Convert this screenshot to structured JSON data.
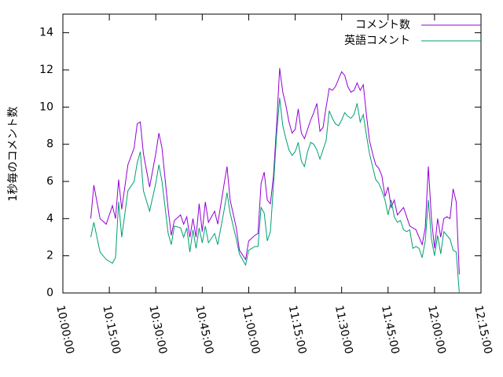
{
  "chart_data": {
    "type": "line",
    "ylabel": "1秒毎のコメント数",
    "x": [
      "10:09:00",
      "10:10:00",
      "10:12:00",
      "10:14:00",
      "10:16:00",
      "10:17:00",
      "10:18:00",
      "10:19:00",
      "10:21:00",
      "10:23:00",
      "10:24:00",
      "10:25:00",
      "10:26:00",
      "10:28:00",
      "10:30:00",
      "10:31:00",
      "10:32:00",
      "10:34:00",
      "10:35:00",
      "10:36:00",
      "10:38:00",
      "10:39:00",
      "10:40:00",
      "10:41:00",
      "10:42:00",
      "10:43:00",
      "10:44:00",
      "10:45:00",
      "10:46:00",
      "10:47:00",
      "10:49:00",
      "10:50:00",
      "10:52:00",
      "10:53:00",
      "10:54:00",
      "10:56:00",
      "10:57:00",
      "10:59:00",
      "11:00:00",
      "11:02:00",
      "11:03:00",
      "11:04:00",
      "11:05:00",
      "11:06:00",
      "11:07:00",
      "11:08:00",
      "11:09:00",
      "11:10:00",
      "11:11:00",
      "11:12:00",
      "11:13:00",
      "11:14:00",
      "11:15:00",
      "11:16:00",
      "11:17:00",
      "11:18:00",
      "11:19:00",
      "11:20:00",
      "11:21:00",
      "11:22:00",
      "11:23:00",
      "11:24:00",
      "11:25:00",
      "11:26:00",
      "11:27:00",
      "11:28:00",
      "11:29:00",
      "11:30:00",
      "11:31:00",
      "11:32:00",
      "11:33:00",
      "11:34:00",
      "11:35:00",
      "11:36:00",
      "11:37:00",
      "11:38:00",
      "11:39:00",
      "11:40:00",
      "11:41:00",
      "11:42:00",
      "11:43:00",
      "11:44:00",
      "11:45:00",
      "11:46:00",
      "11:47:00",
      "11:48:00",
      "11:49:00",
      "11:50:00",
      "11:51:00",
      "11:52:00",
      "11:53:00",
      "11:54:00",
      "11:55:00",
      "11:56:00",
      "11:57:00",
      "11:58:00",
      "11:59:00",
      "12:00:00",
      "12:01:00",
      "12:02:00",
      "12:03:00",
      "12:04:00",
      "12:05:00",
      "12:06:00",
      "12:07:00",
      "12:08:00"
    ],
    "series": [
      {
        "name": "コメント数",
        "color": "#9400d3",
        "values": [
          4.0,
          5.8,
          4.0,
          3.7,
          4.7,
          4.0,
          6.1,
          4.5,
          6.9,
          7.8,
          9.1,
          9.2,
          7.5,
          5.7,
          7.5,
          8.6,
          7.8,
          4.5,
          3.1,
          3.9,
          4.2,
          3.7,
          4.1,
          3.0,
          4.0,
          3.0,
          4.8,
          3.3,
          4.9,
          3.8,
          4.4,
          3.7,
          5.8,
          6.8,
          5.0,
          3.5,
          2.3,
          1.8,
          2.8,
          3.1,
          3.2,
          5.9,
          6.5,
          5.0,
          4.8,
          6.3,
          9.0,
          12.1,
          10.8,
          10.1,
          9.2,
          8.6,
          8.8,
          9.9,
          8.6,
          8.3,
          8.8,
          9.3,
          9.7,
          10.2,
          8.7,
          8.9,
          10.0,
          11.0,
          10.9,
          11.1,
          11.5,
          11.9,
          11.7,
          11.1,
          10.8,
          10.9,
          11.3,
          10.9,
          11.2,
          9.6,
          8.2,
          7.5,
          6.9,
          6.7,
          6.3,
          5.2,
          5.7,
          4.6,
          5.0,
          4.2,
          4.4,
          4.6,
          4.1,
          3.6,
          3.5,
          3.4,
          3.0,
          2.6,
          3.5,
          6.8,
          4.0,
          2.4,
          4.0,
          3.0,
          4.0,
          4.1,
          4.0,
          5.6,
          4.9,
          1.0
        ]
      },
      {
        "name": "英語コメント",
        "color": "#009e73",
        "values": [
          3.0,
          3.8,
          2.2,
          1.8,
          1.6,
          1.9,
          4.9,
          3.0,
          5.5,
          6.0,
          7.0,
          7.6,
          5.5,
          4.4,
          5.9,
          6.9,
          6.0,
          3.2,
          2.6,
          3.6,
          3.5,
          3.0,
          3.5,
          2.2,
          3.4,
          2.4,
          3.5,
          2.7,
          3.6,
          2.7,
          3.2,
          2.6,
          4.4,
          5.4,
          4.3,
          2.9,
          2.1,
          1.5,
          2.3,
          2.5,
          2.5,
          4.6,
          4.3,
          2.8,
          3.3,
          5.8,
          8.5,
          10.5,
          9.0,
          8.3,
          7.7,
          7.4,
          7.6,
          8.1,
          7.1,
          6.8,
          7.6,
          8.1,
          8.0,
          7.7,
          7.2,
          7.7,
          8.2,
          9.8,
          9.4,
          9.1,
          9.0,
          9.3,
          9.7,
          9.5,
          9.4,
          9.6,
          10.2,
          9.2,
          9.6,
          8.5,
          7.5,
          6.8,
          6.1,
          5.9,
          5.5,
          5.0,
          4.2,
          5.0,
          4.1,
          3.8,
          3.9,
          3.4,
          3.3,
          3.4,
          2.4,
          2.5,
          2.4,
          1.9,
          2.8,
          5.0,
          2.9,
          2.0,
          3.1,
          2.1,
          3.3,
          3.1,
          2.9,
          2.3,
          2.2,
          0.0
        ]
      }
    ],
    "xlim": [
      "10:00:00",
      "12:15:00"
    ],
    "xticks": [
      "10:00:00",
      "10:15:00",
      "10:30:00",
      "10:45:00",
      "11:00:00",
      "11:15:00",
      "11:30:00",
      "11:45:00",
      "12:00:00",
      "12:15:00"
    ],
    "ylim": [
      0,
      15
    ],
    "yticks": [
      0,
      2,
      4,
      6,
      8,
      10,
      12,
      14
    ],
    "legend": "upper right"
  }
}
